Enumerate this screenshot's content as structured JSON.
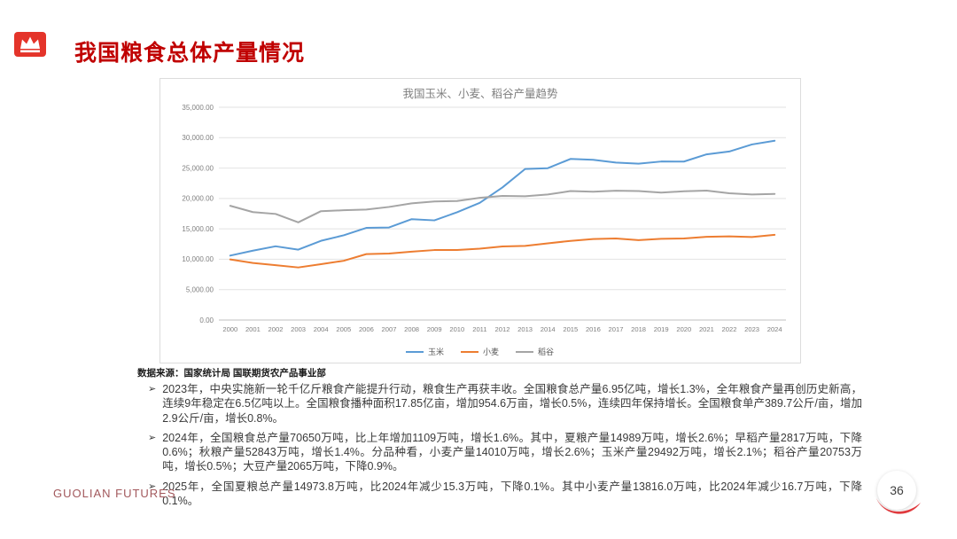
{
  "slide": {
    "title": "我国粮食总体产量情况",
    "source_note": "数据来源：国家统计局 国联期货农产品事业部",
    "footer_brand": "GUOLIAN FUTURES",
    "page_number": "36",
    "bullets": [
      {
        "marker": "➢",
        "text": "2023年，中央实施新一轮千亿斤粮食产能提升行动，粮食生产再获丰收。全国粮食总产量6.95亿吨，增长1.3%，全年粮食产量再创历史新高，连续9年稳定在6.5亿吨以上。全国粮食播种面积17.85亿亩，增加954.6万亩，增长0.5%，连续四年保持增长。全国粮食单产389.7公斤/亩，增加2.9公斤/亩，增长0.8%。"
      },
      {
        "marker": "➢",
        "text": "2024年，全国粮食总产量70650万吨，比上年增加1109万吨，增长1.6%。其中，夏粮产量14989万吨，增长2.6%；早稻产量2817万吨，下降0.6%；秋粮产量52843万吨，增长1.4%。分品种看，小麦产量14010万吨，增长2.6%；玉米产量29492万吨，增长2.1%；稻谷产量20753万吨，增长0.5%；大豆产量2065万吨，下降0.9%。"
      },
      {
        "marker": "➢",
        "text": "2025年，全国夏粮总产量14973.8万吨，比2024年减少15.3万吨，下降0.1%。其中小麦产量13816.0万吨，比2024年减少16.7万吨，下降0.1%。"
      }
    ],
    "colors": {
      "title_red": "#c00000",
      "logo_red": "#e4342a",
      "swoosh_red": "#e03a3e"
    }
  },
  "chart_data": {
    "type": "line",
    "title": "我国玉米、小麦、稻谷产量趋势",
    "x": [
      2000,
      2001,
      2002,
      2003,
      2004,
      2005,
      2006,
      2007,
      2008,
      2009,
      2010,
      2011,
      2012,
      2013,
      2014,
      2015,
      2016,
      2017,
      2018,
      2019,
      2020,
      2021,
      2022,
      2023,
      2024
    ],
    "series": [
      {
        "name": "玉米",
        "color": "#5b9bd5",
        "values": [
          10598,
          11409,
          12131,
          11583,
          13029,
          13937,
          15160,
          15230,
          16591,
          16397,
          17725,
          19278,
          21812,
          24845,
          24976,
          26499,
          26361,
          25907,
          25717,
          26077,
          26067,
          27255,
          27720,
          28884,
          29492
        ]
      },
      {
        "name": "小麦",
        "color": "#ed7d31",
        "values": [
          9964,
          9387,
          9029,
          8649,
          9195,
          9745,
          10847,
          10930,
          11246,
          11512,
          11518,
          11740,
          12102,
          12193,
          12621,
          13019,
          13319,
          13424,
          13144,
          13360,
          13425,
          13695,
          13772,
          13659,
          14010
        ]
      },
      {
        "name": "稻谷",
        "color": "#a5a5a5",
        "values": [
          18791,
          17758,
          17454,
          16066,
          17909,
          18059,
          18172,
          18603,
          19190,
          19510,
          19576,
          20100,
          20424,
          20361,
          20651,
          21214,
          21109,
          21268,
          21213,
          20961,
          21186,
          21284,
          20849,
          20660,
          20753
        ]
      }
    ],
    "ylim": [
      0,
      35000
    ],
    "ytick_step": 5000,
    "ytick_format": "thousands_two_decimals",
    "grid": true,
    "legend_position": "bottom",
    "text_color": "#7f7f7f",
    "grid_color": "#e2e2e2",
    "axis_color": "#bfbfbf"
  }
}
